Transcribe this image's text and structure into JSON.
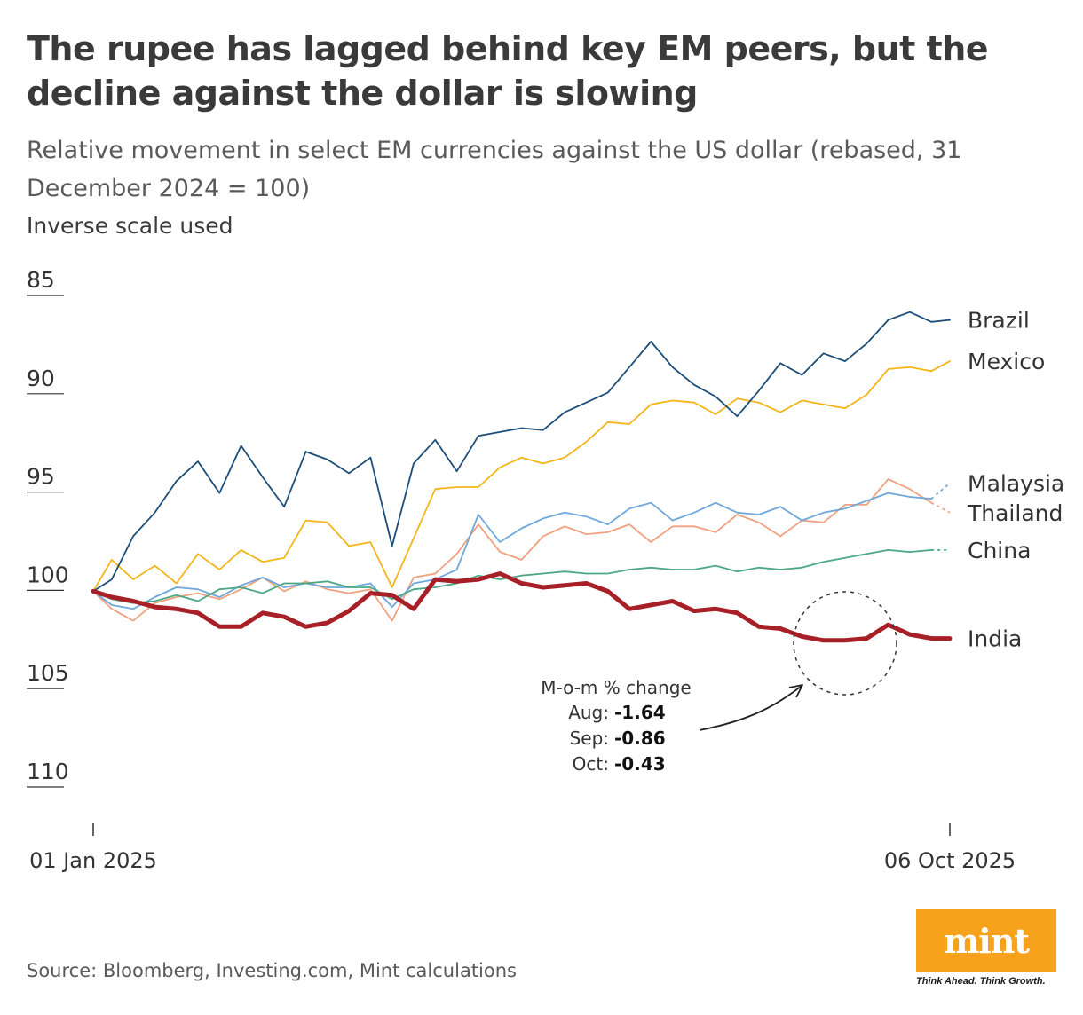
{
  "title": "The rupee has lagged behind key EM peers, but the decline against the dollar is slowing",
  "subtitle": "Relative movement in select EM currencies against the US dollar (rebased, 31 December 2024 = 100)",
  "scale_note": "Inverse scale used",
  "source": "Source: Bloomberg, Investing.com, Mint calculations",
  "brand": {
    "logo_text": "mint",
    "tagline": "Think Ahead. Think Growth.",
    "color": "#f7a21b"
  },
  "annotation": {
    "heading": "M-o-m % change",
    "rows": [
      {
        "label": "Aug:",
        "value": "-1.64"
      },
      {
        "label": "Sep:",
        "value": "-0.86"
      },
      {
        "label": "Oct:",
        "value": "-0.43"
      }
    ]
  },
  "chart_data": {
    "type": "line",
    "inverse_y": true,
    "ylim": [
      85,
      110
    ],
    "yticks": [
      "85",
      "90",
      "95",
      "100",
      "105",
      "110"
    ],
    "xlim": [
      "2025-01-01",
      "2025-10-06"
    ],
    "xticks": [
      "01 Jan 2025",
      "06 Oct 2025"
    ],
    "grid": false,
    "legend": "direct labels at line ends",
    "series": [
      {
        "name": "Brazil",
        "color": "#1d4e79",
        "dashed_end": false,
        "points": [
          [
            "2025-01-01",
            100
          ],
          [
            "2025-01-07",
            99.4
          ],
          [
            "2025-01-14",
            97.2
          ],
          [
            "2025-01-21",
            96.0
          ],
          [
            "2025-01-28",
            94.4
          ],
          [
            "2025-02-04",
            93.4
          ],
          [
            "2025-02-11",
            95.0
          ],
          [
            "2025-02-18",
            92.6
          ],
          [
            "2025-02-25",
            94.2
          ],
          [
            "2025-03-04",
            95.7
          ],
          [
            "2025-03-11",
            92.9
          ],
          [
            "2025-03-18",
            93.3
          ],
          [
            "2025-03-25",
            94.0
          ],
          [
            "2025-04-01",
            93.2
          ],
          [
            "2025-04-08",
            97.7
          ],
          [
            "2025-04-15",
            93.5
          ],
          [
            "2025-04-22",
            92.3
          ],
          [
            "2025-04-29",
            93.9
          ],
          [
            "2025-05-06",
            92.1
          ],
          [
            "2025-05-13",
            91.9
          ],
          [
            "2025-05-20",
            91.7
          ],
          [
            "2025-05-27",
            91.8
          ],
          [
            "2025-06-03",
            90.9
          ],
          [
            "2025-06-10",
            90.4
          ],
          [
            "2025-06-17",
            89.9
          ],
          [
            "2025-06-24",
            88.6
          ],
          [
            "2025-07-01",
            87.3
          ],
          [
            "2025-07-08",
            88.6
          ],
          [
            "2025-07-15",
            89.5
          ],
          [
            "2025-07-22",
            90.1
          ],
          [
            "2025-07-29",
            91.1
          ],
          [
            "2025-08-05",
            89.8
          ],
          [
            "2025-08-12",
            88.4
          ],
          [
            "2025-08-19",
            89.0
          ],
          [
            "2025-08-26",
            87.9
          ],
          [
            "2025-09-02",
            88.3
          ],
          [
            "2025-09-09",
            87.4
          ],
          [
            "2025-09-16",
            86.2
          ],
          [
            "2025-09-23",
            85.8
          ],
          [
            "2025-09-30",
            86.3
          ],
          [
            "2025-10-06",
            86.2
          ]
        ]
      },
      {
        "name": "Mexico",
        "color": "#f3b51a",
        "dashed_end": false,
        "points": [
          [
            "2025-01-01",
            100
          ],
          [
            "2025-01-07",
            98.4
          ],
          [
            "2025-01-14",
            99.4
          ],
          [
            "2025-01-21",
            98.7
          ],
          [
            "2025-01-28",
            99.6
          ],
          [
            "2025-02-04",
            98.1
          ],
          [
            "2025-02-11",
            98.9
          ],
          [
            "2025-02-18",
            97.9
          ],
          [
            "2025-02-25",
            98.5
          ],
          [
            "2025-03-04",
            98.3
          ],
          [
            "2025-03-11",
            96.4
          ],
          [
            "2025-03-18",
            96.5
          ],
          [
            "2025-03-25",
            97.7
          ],
          [
            "2025-04-01",
            97.5
          ],
          [
            "2025-04-08",
            99.8
          ],
          [
            "2025-04-15",
            97.3
          ],
          [
            "2025-04-22",
            94.8
          ],
          [
            "2025-04-29",
            94.7
          ],
          [
            "2025-05-06",
            94.7
          ],
          [
            "2025-05-13",
            93.7
          ],
          [
            "2025-05-20",
            93.2
          ],
          [
            "2025-05-27",
            93.5
          ],
          [
            "2025-06-03",
            93.2
          ],
          [
            "2025-06-10",
            92.4
          ],
          [
            "2025-06-17",
            91.4
          ],
          [
            "2025-06-24",
            91.5
          ],
          [
            "2025-07-01",
            90.5
          ],
          [
            "2025-07-08",
            90.3
          ],
          [
            "2025-07-15",
            90.4
          ],
          [
            "2025-07-22",
            91.0
          ],
          [
            "2025-07-29",
            90.2
          ],
          [
            "2025-08-05",
            90.4
          ],
          [
            "2025-08-12",
            90.9
          ],
          [
            "2025-08-19",
            90.3
          ],
          [
            "2025-08-26",
            90.5
          ],
          [
            "2025-09-02",
            90.7
          ],
          [
            "2025-09-09",
            90.0
          ],
          [
            "2025-09-16",
            88.7
          ],
          [
            "2025-09-23",
            88.6
          ],
          [
            "2025-09-30",
            88.8
          ],
          [
            "2025-10-06",
            88.3
          ]
        ]
      },
      {
        "name": "Malaysia",
        "color": "#6fa8dc",
        "dashed_end": true,
        "points": [
          [
            "2025-01-01",
            100
          ],
          [
            "2025-01-07",
            100.7
          ],
          [
            "2025-01-14",
            100.9
          ],
          [
            "2025-01-21",
            100.3
          ],
          [
            "2025-01-28",
            99.8
          ],
          [
            "2025-02-04",
            99.9
          ],
          [
            "2025-02-11",
            100.3
          ],
          [
            "2025-02-18",
            99.7
          ],
          [
            "2025-02-25",
            99.3
          ],
          [
            "2025-03-04",
            99.8
          ],
          [
            "2025-03-11",
            99.6
          ],
          [
            "2025-03-18",
            99.8
          ],
          [
            "2025-03-25",
            99.8
          ],
          [
            "2025-04-01",
            99.6
          ],
          [
            "2025-04-08",
            100.8
          ],
          [
            "2025-04-15",
            99.6
          ],
          [
            "2025-04-22",
            99.4
          ],
          [
            "2025-04-29",
            98.9
          ],
          [
            "2025-05-06",
            96.1
          ],
          [
            "2025-05-13",
            97.5
          ],
          [
            "2025-05-20",
            96.8
          ],
          [
            "2025-05-27",
            96.3
          ],
          [
            "2025-06-03",
            96.0
          ],
          [
            "2025-06-10",
            96.2
          ],
          [
            "2025-06-17",
            96.6
          ],
          [
            "2025-06-24",
            95.8
          ],
          [
            "2025-07-01",
            95.5
          ],
          [
            "2025-07-08",
            96.4
          ],
          [
            "2025-07-15",
            96.0
          ],
          [
            "2025-07-22",
            95.5
          ],
          [
            "2025-07-29",
            96.0
          ],
          [
            "2025-08-05",
            96.1
          ],
          [
            "2025-08-12",
            95.7
          ],
          [
            "2025-08-19",
            96.4
          ],
          [
            "2025-08-26",
            96.0
          ],
          [
            "2025-09-02",
            95.8
          ],
          [
            "2025-09-09",
            95.4
          ],
          [
            "2025-09-16",
            95.0
          ],
          [
            "2025-09-23",
            95.2
          ],
          [
            "2025-09-30",
            95.3
          ],
          [
            "2025-10-06",
            94.5
          ]
        ]
      },
      {
        "name": "Thailand",
        "color": "#f0a17f",
        "dashed_end": true,
        "points": [
          [
            "2025-01-01",
            100
          ],
          [
            "2025-01-07",
            100.9
          ],
          [
            "2025-01-14",
            101.5
          ],
          [
            "2025-01-21",
            100.6
          ],
          [
            "2025-01-28",
            100.3
          ],
          [
            "2025-02-04",
            100.1
          ],
          [
            "2025-02-11",
            100.4
          ],
          [
            "2025-02-18",
            99.9
          ],
          [
            "2025-02-25",
            99.3
          ],
          [
            "2025-03-04",
            100.0
          ],
          [
            "2025-03-11",
            99.5
          ],
          [
            "2025-03-18",
            99.9
          ],
          [
            "2025-03-25",
            100.1
          ],
          [
            "2025-04-01",
            99.9
          ],
          [
            "2025-04-08",
            101.5
          ],
          [
            "2025-04-15",
            99.3
          ],
          [
            "2025-04-22",
            99.1
          ],
          [
            "2025-04-29",
            98.1
          ],
          [
            "2025-05-06",
            96.6
          ],
          [
            "2025-05-13",
            98.0
          ],
          [
            "2025-05-20",
            98.4
          ],
          [
            "2025-05-27",
            97.2
          ],
          [
            "2025-06-03",
            96.7
          ],
          [
            "2025-06-10",
            97.1
          ],
          [
            "2025-06-17",
            97.0
          ],
          [
            "2025-06-24",
            96.6
          ],
          [
            "2025-07-01",
            97.5
          ],
          [
            "2025-07-08",
            96.7
          ],
          [
            "2025-07-15",
            96.7
          ],
          [
            "2025-07-22",
            97.0
          ],
          [
            "2025-07-29",
            96.1
          ],
          [
            "2025-08-05",
            96.5
          ],
          [
            "2025-08-12",
            97.2
          ],
          [
            "2025-08-19",
            96.4
          ],
          [
            "2025-08-26",
            96.5
          ],
          [
            "2025-09-02",
            95.6
          ],
          [
            "2025-09-09",
            95.6
          ],
          [
            "2025-09-16",
            94.3
          ],
          [
            "2025-09-23",
            94.8
          ],
          [
            "2025-09-30",
            95.5
          ],
          [
            "2025-10-06",
            96.0
          ]
        ]
      },
      {
        "name": "China",
        "color": "#4ba882",
        "dashed_end": true,
        "points": [
          [
            "2025-01-01",
            100
          ],
          [
            "2025-01-07",
            100.4
          ],
          [
            "2025-01-14",
            100.6
          ],
          [
            "2025-01-21",
            100.5
          ],
          [
            "2025-01-28",
            100.2
          ],
          [
            "2025-02-04",
            100.5
          ],
          [
            "2025-02-11",
            99.9
          ],
          [
            "2025-02-18",
            99.8
          ],
          [
            "2025-02-25",
            100.1
          ],
          [
            "2025-03-04",
            99.6
          ],
          [
            "2025-03-11",
            99.6
          ],
          [
            "2025-03-18",
            99.5
          ],
          [
            "2025-03-25",
            99.8
          ],
          [
            "2025-04-01",
            99.8
          ],
          [
            "2025-04-08",
            100.4
          ],
          [
            "2025-04-15",
            99.9
          ],
          [
            "2025-04-22",
            99.8
          ],
          [
            "2025-04-29",
            99.6
          ],
          [
            "2025-05-06",
            99.2
          ],
          [
            "2025-05-13",
            99.4
          ],
          [
            "2025-05-20",
            99.2
          ],
          [
            "2025-05-27",
            99.1
          ],
          [
            "2025-06-03",
            99.0
          ],
          [
            "2025-06-10",
            99.1
          ],
          [
            "2025-06-17",
            99.1
          ],
          [
            "2025-06-24",
            98.9
          ],
          [
            "2025-07-01",
            98.8
          ],
          [
            "2025-07-08",
            98.9
          ],
          [
            "2025-07-15",
            98.9
          ],
          [
            "2025-07-22",
            98.7
          ],
          [
            "2025-07-29",
            99.0
          ],
          [
            "2025-08-05",
            98.8
          ],
          [
            "2025-08-12",
            98.9
          ],
          [
            "2025-08-19",
            98.8
          ],
          [
            "2025-08-26",
            98.5
          ],
          [
            "2025-09-02",
            98.3
          ],
          [
            "2025-09-09",
            98.1
          ],
          [
            "2025-09-16",
            97.9
          ],
          [
            "2025-09-23",
            98.0
          ],
          [
            "2025-09-30",
            97.9
          ],
          [
            "2025-10-06",
            97.9
          ]
        ]
      },
      {
        "name": "India",
        "color": "#a82027",
        "dashed_end": false,
        "points": [
          [
            "2025-01-01",
            100
          ],
          [
            "2025-01-07",
            100.3
          ],
          [
            "2025-01-14",
            100.5
          ],
          [
            "2025-01-21",
            100.8
          ],
          [
            "2025-01-28",
            100.9
          ],
          [
            "2025-02-04",
            101.1
          ],
          [
            "2025-02-11",
            101.8
          ],
          [
            "2025-02-18",
            101.8
          ],
          [
            "2025-02-25",
            101.1
          ],
          [
            "2025-03-04",
            101.3
          ],
          [
            "2025-03-11",
            101.8
          ],
          [
            "2025-03-18",
            101.6
          ],
          [
            "2025-03-25",
            101.0
          ],
          [
            "2025-04-01",
            100.1
          ],
          [
            "2025-04-08",
            100.2
          ],
          [
            "2025-04-15",
            100.9
          ],
          [
            "2025-04-22",
            99.4
          ],
          [
            "2025-04-29",
            99.5
          ],
          [
            "2025-05-06",
            99.4
          ],
          [
            "2025-05-13",
            99.1
          ],
          [
            "2025-05-20",
            99.6
          ],
          [
            "2025-05-27",
            99.8
          ],
          [
            "2025-06-03",
            99.7
          ],
          [
            "2025-06-10",
            99.6
          ],
          [
            "2025-06-17",
            100.0
          ],
          [
            "2025-06-24",
            100.9
          ],
          [
            "2025-07-01",
            100.7
          ],
          [
            "2025-07-08",
            100.5
          ],
          [
            "2025-07-15",
            101.0
          ],
          [
            "2025-07-22",
            100.9
          ],
          [
            "2025-07-29",
            101.1
          ],
          [
            "2025-08-05",
            101.8
          ],
          [
            "2025-08-12",
            101.9
          ],
          [
            "2025-08-19",
            102.3
          ],
          [
            "2025-08-26",
            102.5
          ],
          [
            "2025-09-02",
            102.5
          ],
          [
            "2025-09-09",
            102.4
          ],
          [
            "2025-09-16",
            101.7
          ],
          [
            "2025-09-23",
            102.2
          ],
          [
            "2025-09-30",
            102.4
          ],
          [
            "2025-10-06",
            102.4
          ]
        ]
      }
    ]
  }
}
